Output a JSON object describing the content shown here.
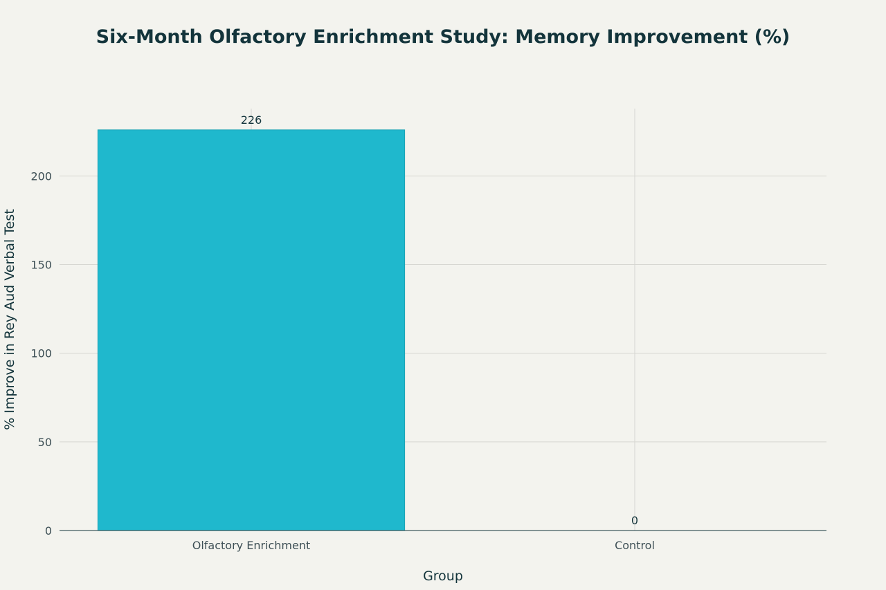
{
  "chart_data": {
    "type": "bar",
    "title": "Six-Month Olfactory Enrichment Study: Memory Improvement (%)",
    "xlabel": "Group",
    "ylabel": "% Improve in Rey Aud Verbal Test",
    "categories": [
      "Olfactory Enrichment",
      "Control"
    ],
    "values": [
      226,
      0
    ],
    "data_labels": [
      "226",
      "0"
    ],
    "y_ticks": [
      0,
      50,
      100,
      150,
      200
    ],
    "ylim": [
      0,
      238
    ],
    "grid": true,
    "legend": "none",
    "colors": {
      "bar": "#1fb8cd",
      "background": "#f3f3ee",
      "text": "#13343b"
    }
  }
}
